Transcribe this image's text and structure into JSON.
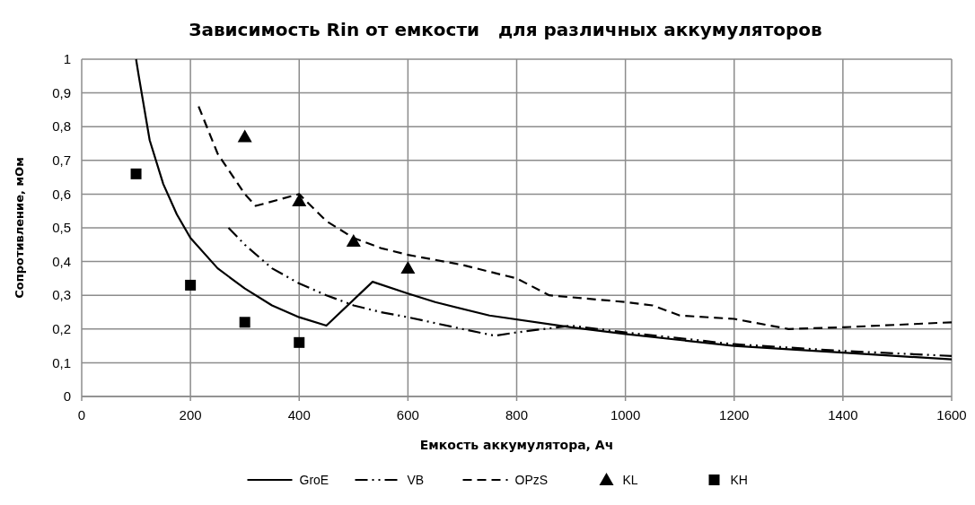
{
  "chart_data": {
    "type": "line",
    "title": "Зависимость Rin от емкости   для различных аккумуляторов",
    "xlabel": "Емкость аккумулятора,  Ач",
    "ylabel": "Сопротивление, мОм",
    "xlim": [
      0,
      1600
    ],
    "xticks": [
      0,
      200,
      400,
      600,
      800,
      1000,
      1200,
      1400,
      1600
    ],
    "ylim": [
      0,
      1
    ],
    "yticks": [
      0,
      {
        "value": 0.1,
        "label": "0,1"
      },
      {
        "value": 0.2,
        "label": "0,2"
      },
      {
        "value": 0.3,
        "label": "0,3"
      },
      {
        "value": 0.4,
        "label": "0,4"
      },
      {
        "value": 0.5,
        "label": "0,5"
      },
      {
        "value": 0.6,
        "label": "0,6"
      },
      {
        "value": 0.7,
        "label": "0,7"
      },
      {
        "value": 0.8,
        "label": "0,8"
      },
      {
        "value": 0.9,
        "label": "0,9"
      },
      1
    ],
    "grid": true,
    "legend": "bottom",
    "series": [
      {
        "name": "GroE",
        "color": "#000000",
        "line_style": "solid",
        "marker": "none",
        "x": [
          100,
          105,
          125,
          150,
          175,
          200,
          250,
          300,
          350,
          400,
          450,
          535,
          600,
          650,
          750,
          900,
          1000,
          1200,
          1400,
          1600
        ],
        "values": [
          1.0,
          0.95,
          0.76,
          0.63,
          0.54,
          0.47,
          0.38,
          0.32,
          0.27,
          0.235,
          0.21,
          0.34,
          0.305,
          0.28,
          0.24,
          0.205,
          0.185,
          0.15,
          0.13,
          0.11
        ]
      },
      {
        "name": "VB",
        "color": "#000000",
        "line_style": "dashdotdot",
        "marker": "none",
        "x": [
          270,
          300,
          350,
          400,
          450,
          500,
          550,
          600,
          700,
          760,
          800,
          900,
          1000,
          1200,
          1400,
          1600
        ],
        "values": [
          0.5,
          0.45,
          0.38,
          0.335,
          0.3,
          0.27,
          0.25,
          0.235,
          0.2,
          0.18,
          0.19,
          0.21,
          0.19,
          0.155,
          0.135,
          0.12
        ]
      },
      {
        "name": "OPzS",
        "color": "#000000",
        "line_style": "dashed",
        "marker": "none",
        "x": [
          215,
          250,
          300,
          320,
          400,
          450,
          500,
          550,
          600,
          700,
          800,
          860,
          1000,
          1050,
          1100,
          1200,
          1300,
          1400,
          1600
        ],
        "values": [
          0.86,
          0.72,
          0.6,
          0.565,
          0.6,
          0.52,
          0.47,
          0.44,
          0.42,
          0.39,
          0.35,
          0.3,
          0.28,
          0.27,
          0.24,
          0.23,
          0.2,
          0.205,
          0.22
        ]
      },
      {
        "name": "KL",
        "type": "scatter",
        "color": "#000000",
        "marker": "triangle",
        "x": [
          300,
          400,
          500,
          600
        ],
        "values": [
          0.77,
          0.58,
          0.46,
          0.38
        ]
      },
      {
        "name": "KH",
        "type": "scatter",
        "color": "#000000",
        "marker": "square",
        "x": [
          100,
          200,
          300,
          400
        ],
        "values": [
          0.66,
          0.33,
          0.22,
          0.16
        ]
      }
    ]
  }
}
